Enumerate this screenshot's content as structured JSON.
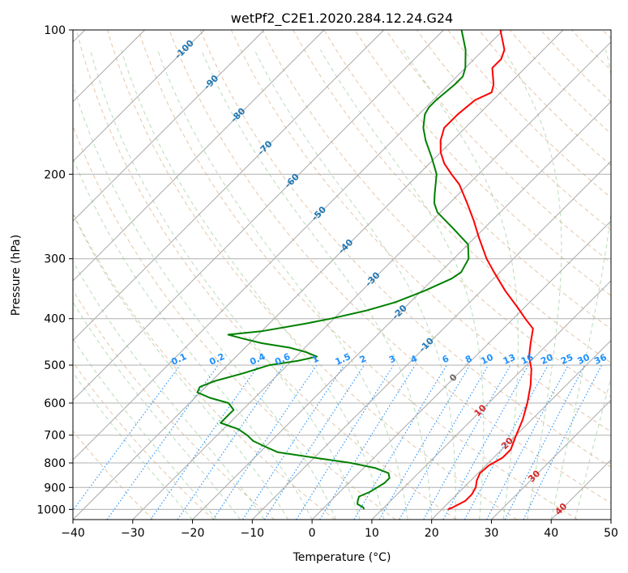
{
  "chart_data": {
    "type": "line",
    "title": "wetPf2_C2E1.2020.284.12.24.G24",
    "xlabel": "Temperature (°C)",
    "ylabel": "Pressure (hPa)",
    "xlim": [
      -40,
      50
    ],
    "ylim": [
      1050,
      100
    ],
    "y_scale": "log",
    "grid": true,
    "x_ticks": [
      "−40",
      "−30",
      "−20",
      "−10",
      "0",
      "10",
      "20",
      "30",
      "40",
      "50"
    ],
    "y_ticks": [
      "100",
      "200",
      "300",
      "400",
      "500",
      "600",
      "700",
      "800",
      "900",
      "1000"
    ],
    "isotherm_labels": [
      "-100",
      "-90",
      "-80",
      "-70",
      "-60",
      "-50",
      "-40",
      "-30",
      "-20",
      "-10",
      "0",
      "10",
      "20",
      "30",
      "40"
    ],
    "mixing_ratio_labels": [
      "0.1",
      "0.2",
      "0.4",
      "0.6",
      "1",
      "1.5",
      "2",
      "3",
      "4",
      "6",
      "8",
      "10",
      "13",
      "16",
      "20",
      "25",
      "30",
      "36"
    ],
    "series": [
      {
        "role": "temperature",
        "color": "#ff0000",
        "points": [
          [
            1000,
            21.0
          ],
          [
            990,
            21.5
          ],
          [
            960,
            22.5
          ],
          [
            930,
            22.5
          ],
          [
            900,
            22.0
          ],
          [
            870,
            21.0
          ],
          [
            840,
            20.3
          ],
          [
            810,
            20.5
          ],
          [
            780,
            21.5
          ],
          [
            750,
            21.5
          ],
          [
            700,
            20.0
          ],
          [
            650,
            18.5
          ],
          [
            600,
            16.5
          ],
          [
            550,
            14.0
          ],
          [
            510,
            11.5
          ],
          [
            480,
            9.0
          ],
          [
            450,
            7.0
          ],
          [
            420,
            5.0
          ],
          [
            400,
            2.0
          ],
          [
            380,
            -1.0
          ],
          [
            350,
            -6.0
          ],
          [
            320,
            -11.0
          ],
          [
            300,
            -14.5
          ],
          [
            270,
            -19.5
          ],
          [
            250,
            -23.0
          ],
          [
            230,
            -27.0
          ],
          [
            210,
            -31.5
          ],
          [
            200,
            -34.5
          ],
          [
            190,
            -37.5
          ],
          [
            180,
            -40.0
          ],
          [
            170,
            -42.0
          ],
          [
            160,
            -43.5
          ],
          [
            150,
            -43.5
          ],
          [
            140,
            -43.0
          ],
          [
            135,
            -41.5
          ],
          [
            130,
            -42.5
          ],
          [
            120,
            -45.5
          ],
          [
            115,
            -45.5
          ],
          [
            110,
            -46.5
          ],
          [
            100,
            -50.5
          ]
        ]
      },
      {
        "role": "dewpoint",
        "color": "#008000",
        "points": [
          [
            1000,
            7.0
          ],
          [
            990,
            6.5
          ],
          [
            975,
            5.0
          ],
          [
            960,
            4.5
          ],
          [
            940,
            4.0
          ],
          [
            920,
            5.0
          ],
          [
            900,
            5.5
          ],
          [
            880,
            6.0
          ],
          [
            860,
            6.0
          ],
          [
            840,
            5.0
          ],
          [
            820,
            2.0
          ],
          [
            800,
            -3.0
          ],
          [
            780,
            -10.0
          ],
          [
            760,
            -17.0
          ],
          [
            740,
            -20.0
          ],
          [
            720,
            -23.0
          ],
          [
            700,
            -25.0
          ],
          [
            680,
            -27.5
          ],
          [
            660,
            -31.5
          ],
          [
            640,
            -31.5
          ],
          [
            620,
            -31.5
          ],
          [
            600,
            -33.5
          ],
          [
            585,
            -37.5
          ],
          [
            570,
            -40.5
          ],
          [
            555,
            -41.0
          ],
          [
            540,
            -39.5
          ],
          [
            520,
            -36.0
          ],
          [
            500,
            -33.0
          ],
          [
            490,
            -29.0
          ],
          [
            480,
            -26.5
          ],
          [
            470,
            -29.0
          ],
          [
            460,
            -32.5
          ],
          [
            450,
            -38.0
          ],
          [
            440,
            -42.0
          ],
          [
            432,
            -45.0
          ],
          [
            425,
            -40.0
          ],
          [
            410,
            -34.0
          ],
          [
            400,
            -30.5
          ],
          [
            385,
            -26.0
          ],
          [
            370,
            -22.5
          ],
          [
            350,
            -19.5
          ],
          [
            330,
            -17.0
          ],
          [
            320,
            -16.5
          ],
          [
            300,
            -17.5
          ],
          [
            280,
            -20.0
          ],
          [
            260,
            -25.0
          ],
          [
            240,
            -30.5
          ],
          [
            230,
            -32.5
          ],
          [
            220,
            -34.0
          ],
          [
            200,
            -37.0
          ],
          [
            185,
            -40.5
          ],
          [
            170,
            -44.5
          ],
          [
            160,
            -47.0
          ],
          [
            150,
            -49.0
          ],
          [
            145,
            -49.5
          ],
          [
            140,
            -49.5
          ],
          [
            130,
            -49.0
          ],
          [
            125,
            -49.0
          ],
          [
            120,
            -50.0
          ],
          [
            110,
            -53.0
          ],
          [
            100,
            -57.0
          ]
        ]
      }
    ]
  }
}
